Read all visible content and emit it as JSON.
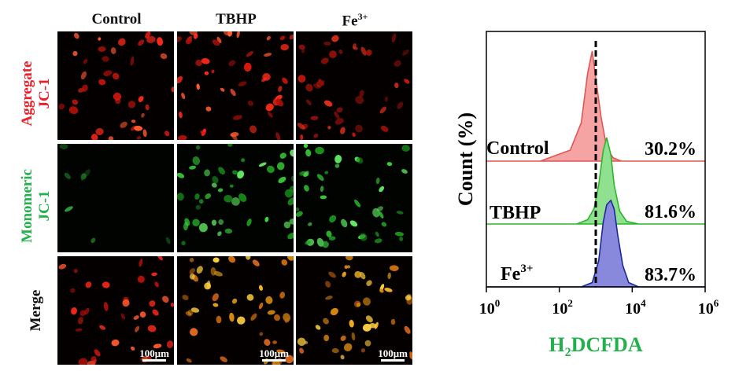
{
  "micrograph": {
    "columns": [
      "Control",
      "TBHP",
      "Fe3+"
    ],
    "column_superscript": "3+",
    "rows": [
      {
        "label_lines": [
          "Aggregate",
          "JC-1"
        ],
        "color": "#e8212b"
      },
      {
        "label_lines": [
          "Monomeric",
          "JC-1"
        ],
        "color": "#22b14c"
      },
      {
        "label_lines": [
          "Merge"
        ],
        "color": "#111111"
      }
    ],
    "scalebar_label": "100μm"
  },
  "chart_data": {
    "type": "area",
    "title": "",
    "xlabel": "H2DCFDA",
    "xlabel_sub": "2",
    "ylabel": "Count (%)",
    "xscale": "log",
    "xlim": [
      1,
      1000000
    ],
    "xticks": [
      1,
      100,
      10000,
      1000000
    ],
    "xtick_labels": [
      "10",
      "10",
      "10",
      "10"
    ],
    "xtick_exponents": [
      "0",
      "2",
      "4",
      "6"
    ],
    "threshold_x": 1000,
    "series": [
      {
        "name": "Control",
        "percent": "30.2%",
        "fill": "#f5a3a3",
        "stroke": "#e05555",
        "x": [
          1,
          30,
          200,
          400,
          600,
          800,
          1000,
          1400,
          2000,
          3000,
          5000,
          10000,
          1000000
        ],
        "y": [
          0,
          0,
          0.1,
          0.35,
          0.8,
          1.0,
          0.75,
          0.4,
          0.12,
          0.03,
          0,
          0,
          0
        ]
      },
      {
        "name": "TBHP",
        "percent": "81.6%",
        "fill": "#8fe08f",
        "stroke": "#2cb52c",
        "x": [
          1,
          300,
          600,
          900,
          1200,
          1600,
          2000,
          2600,
          3200,
          4500,
          7000,
          15000,
          1000000
        ],
        "y": [
          0,
          0,
          0.05,
          0.18,
          0.45,
          0.85,
          1.0,
          0.8,
          0.45,
          0.15,
          0.03,
          0,
          0
        ]
      },
      {
        "name": "Fe3+",
        "percent": "83.7%",
        "fill": "#8888dd",
        "stroke": "#1a2a99",
        "x": [
          1,
          400,
          800,
          1200,
          1600,
          2000,
          2600,
          3200,
          4000,
          5500,
          8000,
          15000,
          1000000
        ],
        "y": [
          0,
          0,
          0.05,
          0.3,
          0.75,
          0.95,
          1.0,
          0.9,
          0.6,
          0.25,
          0.05,
          0,
          0
        ]
      }
    ],
    "series_label_superscript": "3+"
  }
}
